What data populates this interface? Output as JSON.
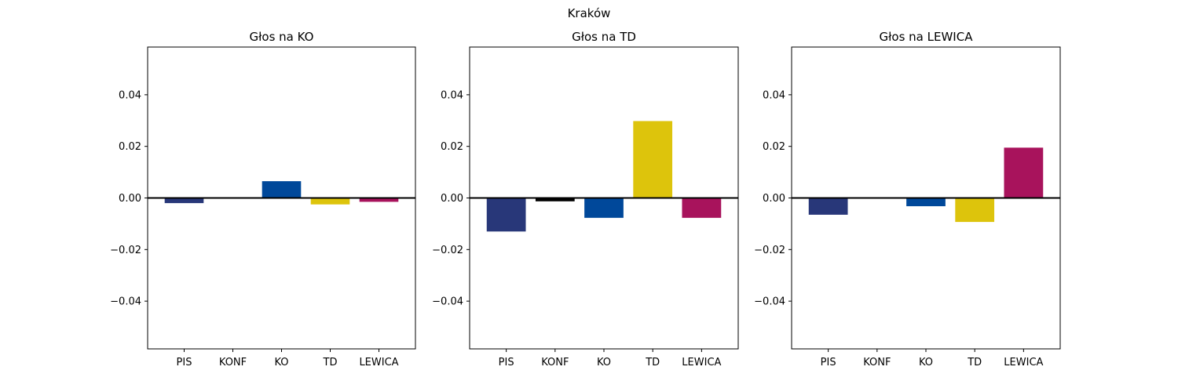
{
  "suptitle": "Kraków",
  "chart_data": [
    {
      "type": "bar",
      "title": "Głos na KO",
      "xlabel": "",
      "ylabel": "",
      "categories": [
        "PIS",
        "KONF",
        "KO",
        "TD",
        "LEWICA"
      ],
      "values": [
        -0.002,
        0.0,
        0.0065,
        -0.0025,
        -0.0015
      ],
      "colors": [
        "#283779",
        "#000000",
        "#00489a",
        "#ddc40c",
        "#a8135c"
      ],
      "ylim": [
        -0.0585,
        0.0585
      ],
      "yticks": [
        -0.04,
        -0.02,
        0.0,
        0.02,
        0.04
      ],
      "ytick_labels": [
        "−0.04",
        "−0.02",
        "0.00",
        "0.02",
        "0.04"
      ],
      "zero_line": true,
      "grid": false
    },
    {
      "type": "bar",
      "title": "Głos na TD",
      "xlabel": "",
      "ylabel": "",
      "categories": [
        "PIS",
        "KONF",
        "KO",
        "TD",
        "LEWICA"
      ],
      "values": [
        -0.013,
        -0.0013,
        -0.0077,
        0.0298,
        -0.0077
      ],
      "colors": [
        "#283779",
        "#000000",
        "#00489a",
        "#ddc40c",
        "#a8135c"
      ],
      "ylim": [
        -0.0585,
        0.0585
      ],
      "yticks": [
        -0.04,
        -0.02,
        0.0,
        0.02,
        0.04
      ],
      "ytick_labels": [
        "−0.04",
        "−0.02",
        "0.00",
        "0.02",
        "0.04"
      ],
      "zero_line": true,
      "grid": false
    },
    {
      "type": "bar",
      "title": "Głos na LEWICA",
      "xlabel": "",
      "ylabel": "",
      "categories": [
        "PIS",
        "KONF",
        "KO",
        "TD",
        "LEWICA"
      ],
      "values": [
        -0.0065,
        0.0,
        -0.0032,
        -0.0093,
        0.0195
      ],
      "colors": [
        "#283779",
        "#000000",
        "#00489a",
        "#ddc40c",
        "#a8135c"
      ],
      "ylim": [
        -0.0585,
        0.0585
      ],
      "yticks": [
        -0.04,
        -0.02,
        0.0,
        0.02,
        0.04
      ],
      "ytick_labels": [
        "−0.04",
        "−0.02",
        "0.00",
        "0.02",
        "0.04"
      ],
      "zero_line": true,
      "grid": false
    }
  ]
}
